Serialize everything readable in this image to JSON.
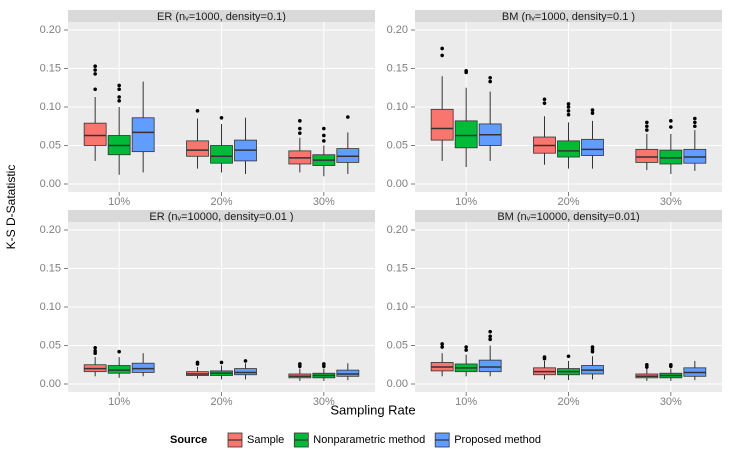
{
  "chart_data": [
    {
      "type": "box",
      "title": "ER (nᵥ=1000, density=0.1)",
      "categories": [
        "10%",
        "20%",
        "30%"
      ],
      "ylim": [
        -0.0104,
        0.2104
      ],
      "yticks": [
        {
          "value": 0,
          "label": "0.00"
        },
        0.05,
        {
          "value": 0.1,
          "label": "0.10"
        },
        0.15,
        {
          "value": 0.2,
          "label": "0.20"
        }
      ],
      "grid": true,
      "series": [
        {
          "name": "Sample",
          "color": "#F8766D",
          "min": [
            0.03,
            0.02,
            0.015
          ],
          "q1": [
            0.05,
            0.036,
            0.026
          ],
          "median": [
            0.063,
            0.044,
            0.034
          ],
          "q3": [
            0.079,
            0.056,
            0.043
          ],
          "max": [
            0.113,
            0.085,
            0.06
          ],
          "outliers": [
            [
              0.123,
              0.143,
              0.148,
              0.153
            ],
            [
              0.095
            ],
            [
              0.066,
              0.072,
              0.082
            ]
          ]
        },
        {
          "name": "Nonparametric method",
          "color": "#00BA38",
          "min": [
            0.012,
            0.015,
            0.01
          ],
          "q1": [
            0.038,
            0.027,
            0.024
          ],
          "median": [
            0.05,
            0.036,
            0.031
          ],
          "q3": [
            0.063,
            0.05,
            0.038
          ],
          "max": [
            0.1,
            0.078,
            0.05
          ],
          "outliers": [
            [
              0.108,
              0.113,
              0.123,
              0.128
            ],
            [
              0.086
            ],
            [
              0.056,
              0.063,
              0.072
            ]
          ]
        },
        {
          "name": "Proposed method",
          "color": "#619CFF",
          "min": [
            0.015,
            0.013,
            0.013
          ],
          "q1": [
            0.042,
            0.03,
            0.028
          ],
          "median": [
            0.067,
            0.044,
            0.036
          ],
          "q3": [
            0.086,
            0.057,
            0.046
          ],
          "max": [
            0.133,
            0.086,
            0.067
          ],
          "outliers": [
            [],
            [],
            [
              0.087
            ]
          ]
        }
      ]
    },
    {
      "type": "box",
      "title": "BM (nᵥ=1000, density=0.1 )",
      "categories": [
        "10%",
        "20%",
        "30%"
      ],
      "ylim": [
        -0.0104,
        0.2104
      ],
      "yticks": [
        {
          "value": 0,
          "label": "0.00"
        },
        0.05,
        {
          "value": 0.1,
          "label": "0.10"
        },
        0.15,
        {
          "value": 0.2,
          "label": "0.20"
        }
      ],
      "grid": true,
      "series": [
        {
          "name": "Sample",
          "color": "#F8766D",
          "min": [
            0.03,
            0.025,
            0.018
          ],
          "q1": [
            0.057,
            0.04,
            0.028
          ],
          "median": [
            0.072,
            0.05,
            0.035
          ],
          "q3": [
            0.097,
            0.061,
            0.045
          ],
          "max": [
            0.14,
            0.088,
            0.065
          ],
          "outliers": [
            [
              0.167,
              0.176
            ],
            [
              0.105,
              0.11
            ],
            [
              0.07,
              0.075,
              0.08
            ]
          ]
        },
        {
          "name": "Nonparametric method",
          "color": "#00BA38",
          "min": [
            0.022,
            0.02,
            0.013
          ],
          "q1": [
            0.047,
            0.035,
            0.026
          ],
          "median": [
            0.063,
            0.043,
            0.034
          ],
          "q3": [
            0.082,
            0.056,
            0.044
          ],
          "max": [
            0.125,
            0.08,
            0.065
          ],
          "outliers": [
            [
              0.145,
              0.147
            ],
            [
              0.09,
              0.095,
              0.1,
              0.104
            ],
            [
              0.074,
              0.082
            ]
          ]
        },
        {
          "name": "Proposed method",
          "color": "#619CFF",
          "min": [
            0.03,
            0.02,
            0.017
          ],
          "q1": [
            0.05,
            0.037,
            0.027
          ],
          "median": [
            0.064,
            0.045,
            0.035
          ],
          "q3": [
            0.078,
            0.058,
            0.045
          ],
          "max": [
            0.12,
            0.082,
            0.07
          ],
          "outliers": [
            [
              0.133,
              0.138
            ],
            [
              0.092,
              0.096
            ],
            [
              0.075,
              0.08,
              0.085
            ]
          ]
        }
      ]
    },
    {
      "type": "box",
      "title": "ER (nᵥ=10000, density=0.01 )",
      "categories": [
        "10%",
        "20%",
        "30%"
      ],
      "ylim": [
        -0.0104,
        0.2104
      ],
      "yticks": [
        {
          "value": 0,
          "label": "0.00"
        },
        0.05,
        {
          "value": 0.1,
          "label": "0.10"
        },
        0.15,
        {
          "value": 0.2,
          "label": "0.20"
        }
      ],
      "grid": true,
      "series": [
        {
          "name": "Sample",
          "color": "#F8766D",
          "min": [
            0.01,
            0.007,
            0.004
          ],
          "q1": [
            0.016,
            0.011,
            0.008
          ],
          "median": [
            0.02,
            0.013,
            0.01
          ],
          "q3": [
            0.025,
            0.016,
            0.013
          ],
          "max": [
            0.035,
            0.022,
            0.02
          ],
          "outliers": [
            [
              0.04,
              0.043,
              0.047
            ],
            [
              0.026,
              0.028
            ],
            [
              0.023,
              0.026
            ]
          ]
        },
        {
          "name": "Nonparametric method",
          "color": "#00BA38",
          "min": [
            0.008,
            0.006,
            0.004
          ],
          "q1": [
            0.014,
            0.011,
            0.008
          ],
          "median": [
            0.018,
            0.014,
            0.011
          ],
          "q3": [
            0.024,
            0.017,
            0.014
          ],
          "max": [
            0.035,
            0.024,
            0.02
          ],
          "outliers": [
            [
              0.042
            ],
            [
              0.028
            ],
            [
              0.023,
              0.026
            ]
          ]
        },
        {
          "name": "Proposed method",
          "color": "#619CFF",
          "min": [
            0.01,
            0.006,
            0.005
          ],
          "q1": [
            0.015,
            0.012,
            0.01
          ],
          "median": [
            0.02,
            0.015,
            0.013
          ],
          "q3": [
            0.027,
            0.02,
            0.018
          ],
          "max": [
            0.04,
            0.027,
            0.027
          ],
          "outliers": [
            [],
            [
              0.03
            ],
            []
          ]
        }
      ]
    },
    {
      "type": "box",
      "title": "BM (nᵥ=10000, density=0.01)",
      "categories": [
        "10%",
        "20%",
        "30%"
      ],
      "ylim": [
        -0.0104,
        0.2104
      ],
      "yticks": [
        {
          "value": 0,
          "label": "0.00"
        },
        0.05,
        {
          "value": 0.1,
          "label": "0.10"
        },
        0.15,
        {
          "value": 0.2,
          "label": "0.20"
        }
      ],
      "grid": true,
      "series": [
        {
          "name": "Sample",
          "color": "#F8766D",
          "min": [
            0.01,
            0.006,
            0.004
          ],
          "q1": [
            0.017,
            0.012,
            0.008
          ],
          "median": [
            0.022,
            0.016,
            0.01
          ],
          "q3": [
            0.028,
            0.021,
            0.013
          ],
          "max": [
            0.04,
            0.03,
            0.02
          ],
          "outliers": [
            [
              0.048,
              0.052
            ],
            [
              0.033,
              0.035
            ],
            [
              0.022,
              0.025
            ]
          ]
        },
        {
          "name": "Nonparametric method",
          "color": "#00BA38",
          "min": [
            0.01,
            0.005,
            0.004
          ],
          "q1": [
            0.016,
            0.012,
            0.008
          ],
          "median": [
            0.021,
            0.016,
            0.011
          ],
          "q3": [
            0.026,
            0.02,
            0.014
          ],
          "max": [
            0.038,
            0.03,
            0.02
          ],
          "outliers": [
            [
              0.044,
              0.048
            ],
            [
              0.036
            ],
            [
              0.023,
              0.025
            ]
          ]
        },
        {
          "name": "Proposed method",
          "color": "#619CFF",
          "min": [
            0.01,
            0.006,
            0.005
          ],
          "q1": [
            0.016,
            0.013,
            0.01
          ],
          "median": [
            0.022,
            0.018,
            0.015
          ],
          "q3": [
            0.031,
            0.024,
            0.021
          ],
          "max": [
            0.05,
            0.036,
            0.03
          ],
          "outliers": [
            [
              0.058,
              0.062,
              0.068
            ],
            [
              0.042,
              0.045,
              0.048
            ],
            []
          ]
        }
      ]
    }
  ],
  "x_label": "Sampling Rate",
  "y_label": "K-S D-Satatistic",
  "legend_title": "Source"
}
